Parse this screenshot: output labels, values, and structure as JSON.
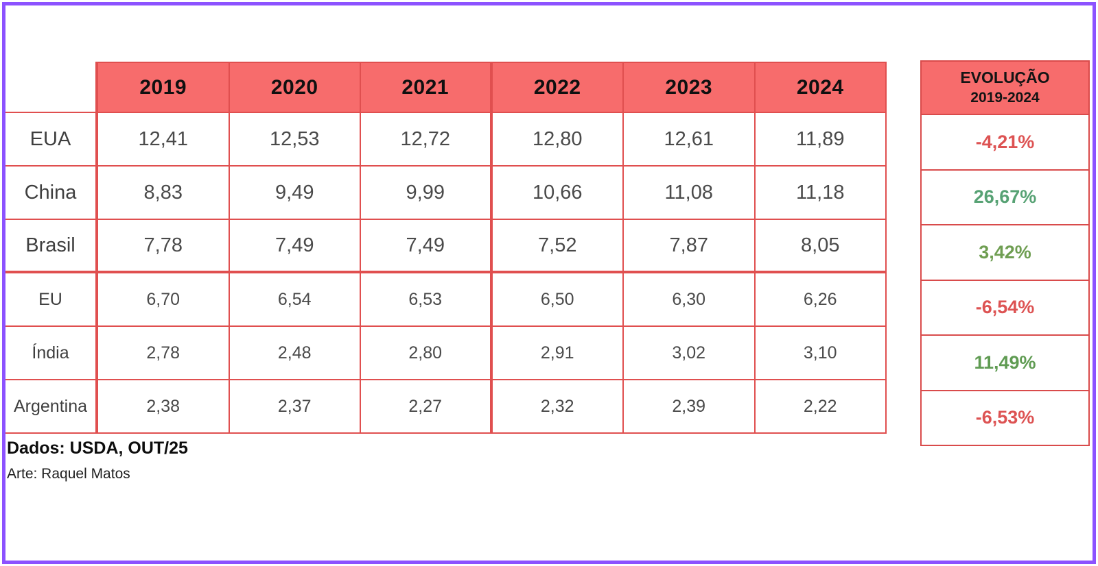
{
  "colors": {
    "frame_purple": "#8c52ff",
    "header_bg": "#f76c6c",
    "grid_red": "#e04f4f",
    "evo_border_red": "#d94b4b",
    "negative_text": "#dd5353",
    "positive_text_teal": "#57a274",
    "positive_text_green": "#649b4f",
    "value_text": "#4a4a4a"
  },
  "table": {
    "year_headers": [
      "2019",
      "2020",
      "2021",
      "2022",
      "2023",
      "2024"
    ],
    "rows": [
      {
        "label": "EUA",
        "size": "big",
        "values": [
          "12,41",
          "12,53",
          "12,72",
          "12,80",
          "12,61",
          "11,89"
        ]
      },
      {
        "label": "China",
        "size": "big",
        "values": [
          "8,83",
          "9,49",
          "9,99",
          "10,66",
          "11,08",
          "11,18"
        ]
      },
      {
        "label": "Brasil",
        "size": "big",
        "values": [
          "7,78",
          "7,49",
          "7,49",
          "7,52",
          "7,87",
          "8,05"
        ]
      },
      {
        "label": "EU",
        "size": "small",
        "values": [
          "6,70",
          "6,54",
          "6,53",
          "6,50",
          "6,30",
          "6,26"
        ]
      },
      {
        "label": "Índia",
        "size": "small",
        "values": [
          "2,78",
          "2,48",
          "2,80",
          "2,91",
          "3,02",
          "3,10"
        ]
      },
      {
        "label": "Argentina",
        "size": "small",
        "values": [
          "2,38",
          "2,37",
          "2,27",
          "2,32",
          "2,39",
          "2,22"
        ]
      }
    ]
  },
  "evolution": {
    "header_line1": "EVOLUÇÃO",
    "header_line2": "2019-2024",
    "values": [
      {
        "row": "EUA",
        "text": "-4,21%",
        "color": "#dd5353"
      },
      {
        "row": "China",
        "text": "26,67%",
        "color": "#57a274"
      },
      {
        "row": "Brasil",
        "text": "3,42%",
        "color": "#6f9e52"
      },
      {
        "row": "EU",
        "text": "-6,54%",
        "color": "#dd5353"
      },
      {
        "row": "Índia",
        "text": "11,49%",
        "color": "#5f9b52"
      },
      {
        "row": "Argentina",
        "text": "-6,53%",
        "color": "#dd5353"
      }
    ]
  },
  "footer": {
    "source": "Dados: USDA, OUT/25",
    "credit": "Arte: Raquel Matos"
  },
  "chart_data": {
    "type": "table",
    "title": "",
    "categories": [
      "2019",
      "2020",
      "2021",
      "2022",
      "2023",
      "2024"
    ],
    "series": [
      {
        "name": "EUA",
        "values": [
          12.41,
          12.53,
          12.72,
          12.8,
          12.61,
          11.89
        ],
        "evolution_2019_2024_pct": -4.21
      },
      {
        "name": "China",
        "values": [
          8.83,
          9.49,
          9.99,
          10.66,
          11.08,
          11.18
        ],
        "evolution_2019_2024_pct": 26.67
      },
      {
        "name": "Brasil",
        "values": [
          7.78,
          7.49,
          7.49,
          7.52,
          7.87,
          8.05
        ],
        "evolution_2019_2024_pct": 3.42
      },
      {
        "name": "EU",
        "values": [
          6.7,
          6.54,
          6.53,
          6.5,
          6.3,
          6.26
        ],
        "evolution_2019_2024_pct": -6.54
      },
      {
        "name": "Índia",
        "values": [
          2.78,
          2.48,
          2.8,
          2.91,
          3.02,
          3.1
        ],
        "evolution_2019_2024_pct": 11.49
      },
      {
        "name": "Argentina",
        "values": [
          2.38,
          2.37,
          2.27,
          2.32,
          2.39,
          2.22
        ],
        "evolution_2019_2024_pct": -6.53
      }
    ],
    "extra_column": "EVOLUÇÃO 2019-2024",
    "source": "USDA, OUT/25"
  }
}
